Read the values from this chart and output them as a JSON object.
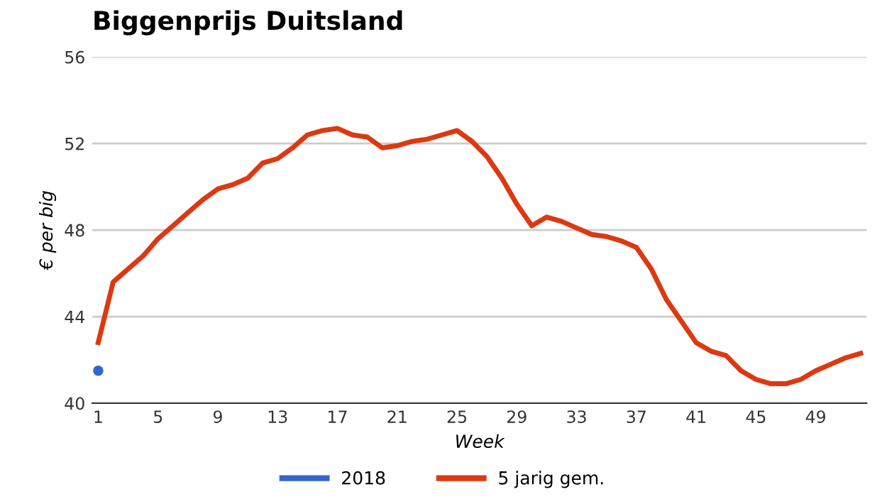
{
  "chart_data": {
    "type": "line",
    "title": "Biggenprijs Duitsland",
    "xlabel": "Week",
    "ylabel": "€ per big",
    "x": [
      1,
      2,
      3,
      4,
      5,
      6,
      7,
      8,
      9,
      10,
      11,
      12,
      13,
      14,
      15,
      16,
      17,
      18,
      19,
      20,
      21,
      22,
      23,
      24,
      25,
      26,
      27,
      28,
      29,
      30,
      31,
      32,
      33,
      34,
      35,
      36,
      37,
      38,
      39,
      40,
      41,
      42,
      43,
      44,
      45,
      46,
      47,
      48,
      49,
      50,
      51,
      52
    ],
    "series": [
      {
        "name": "2018",
        "color": "#3366cc",
        "type": "scatter",
        "x": [
          1
        ],
        "values": [
          41.5
        ]
      },
      {
        "name": "5 jarig gem.",
        "color": "#dc3912",
        "values": [
          42.8,
          45.6,
          46.2,
          46.8,
          47.6,
          48.2,
          48.8,
          49.4,
          49.9,
          50.1,
          50.4,
          51.1,
          51.3,
          51.8,
          52.4,
          52.6,
          52.7,
          52.4,
          52.3,
          51.8,
          51.9,
          52.1,
          52.2,
          52.4,
          52.6,
          52.1,
          51.4,
          50.4,
          49.2,
          48.2,
          48.6,
          48.4,
          48.1,
          47.8,
          47.7,
          47.5,
          47.2,
          46.2,
          44.8,
          43.8,
          42.8,
          42.4,
          42.2,
          41.5,
          41.1,
          40.9,
          40.9,
          41.1,
          41.5,
          41.8,
          42.1,
          42.3
        ]
      }
    ],
    "xlim": [
      0.6,
      52.4
    ],
    "xticks": [
      1,
      5,
      9,
      13,
      17,
      21,
      25,
      29,
      33,
      37,
      41,
      45,
      49
    ],
    "ylim": [
      40,
      56
    ],
    "yticks": [
      40,
      44,
      48,
      52,
      56
    ],
    "grid": "y",
    "legend": "bottom"
  }
}
